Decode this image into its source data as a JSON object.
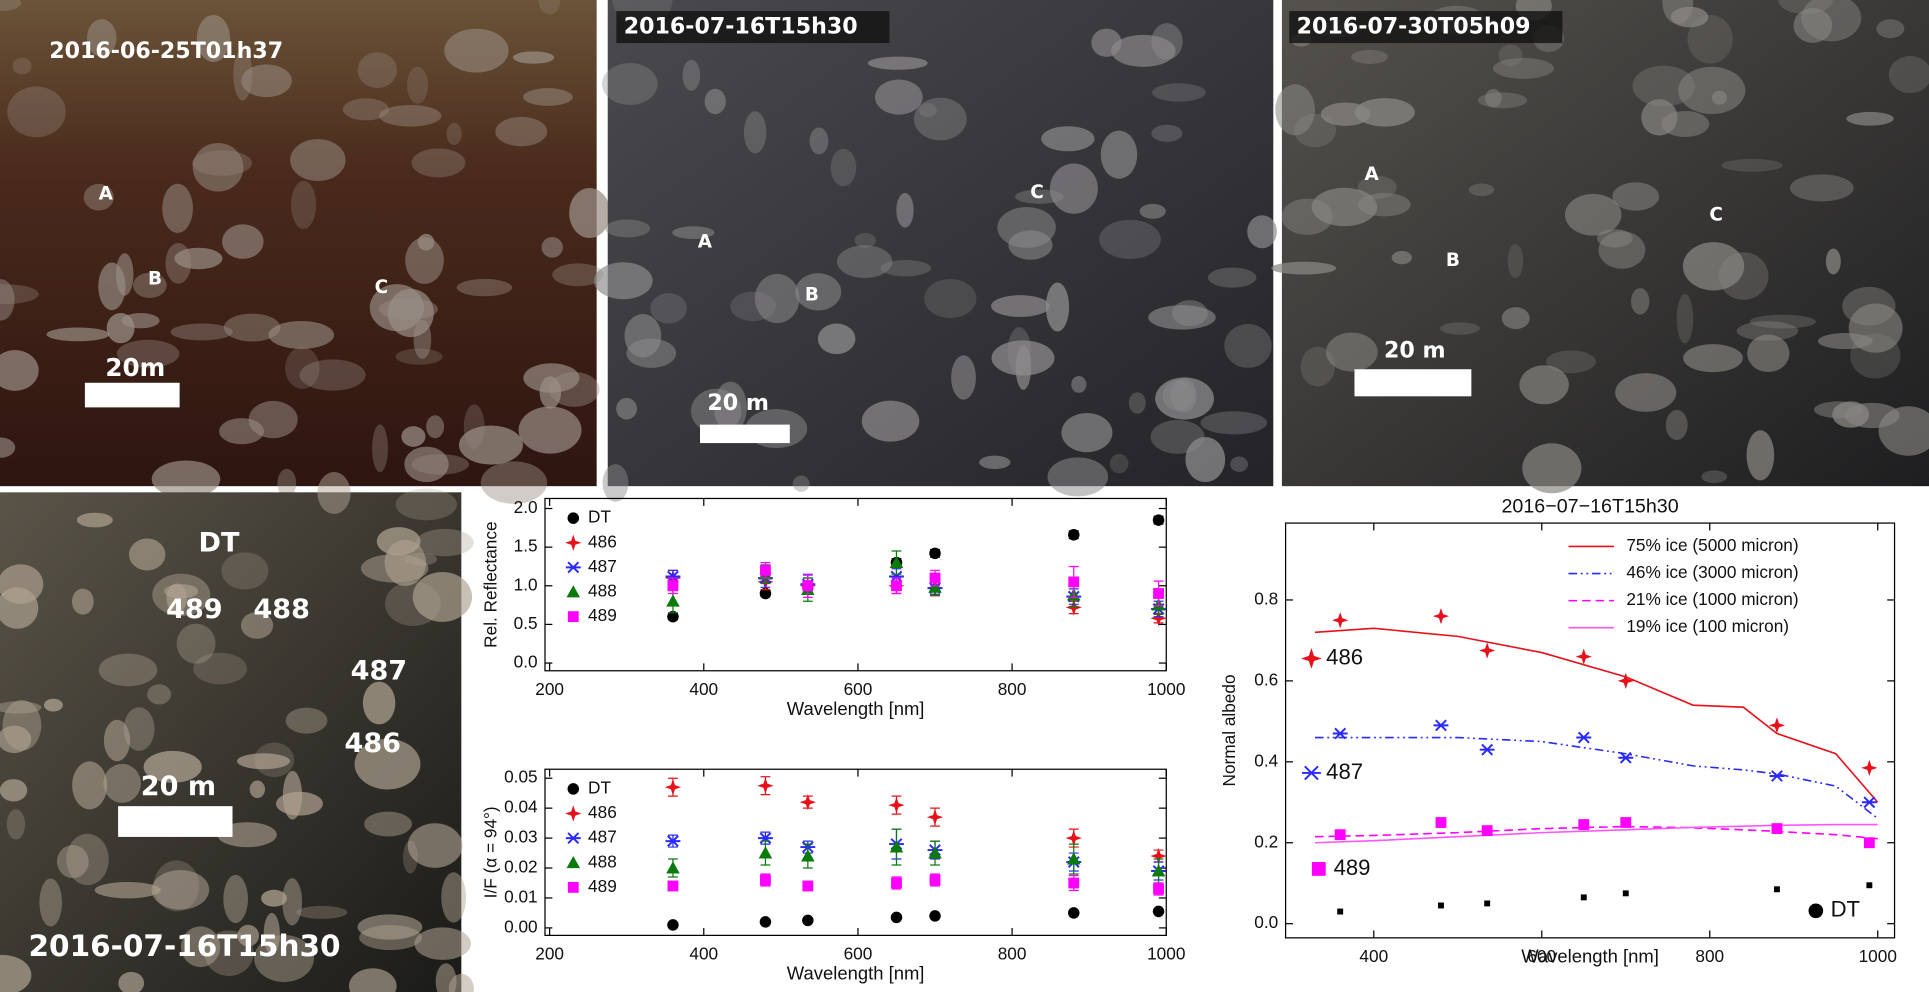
{
  "images": [
    {
      "timestamp": "2016-06-25T01h37",
      "labels": [
        "A",
        "B",
        "C"
      ],
      "scale": "20m"
    },
    {
      "timestamp": "2016-07-16T15h30",
      "labels": [
        "A",
        "B",
        "C"
      ],
      "scale": "20 m"
    },
    {
      "timestamp": "2016-07-30T05h09",
      "labels": [
        "A",
        "B",
        "C"
      ],
      "scale": "20 m"
    },
    {
      "timestamp": "2016-07-16T15h30",
      "labels": [
        "DT",
        "489",
        "488",
        "487",
        "486"
      ],
      "scale": "20 m"
    }
  ],
  "chart_data": [
    {
      "type": "scatter",
      "x_label": "Wavelength [nm]",
      "y_label": "Rel. Reflectance",
      "legend": "upper left",
      "x": [
        360,
        480,
        535,
        650,
        700,
        880,
        990
      ],
      "xlim": [
        194,
        1000
      ],
      "xticks": [
        200,
        400,
        600,
        800,
        1000
      ],
      "ylim": [
        -0.1,
        2.13
      ],
      "yticks": [
        {
          "value": 0,
          "label": "0.0"
        },
        {
          "value": 0.5,
          "label": "0.5"
        },
        {
          "value": 1,
          "label": "1.0"
        },
        {
          "value": 1.5,
          "label": "1.5"
        },
        {
          "value": 2,
          "label": "2.0"
        }
      ],
      "series": [
        {
          "name": "DT",
          "color": "#000000",
          "marker": "circle",
          "values": [
            0.6,
            0.9,
            1.0,
            1.3,
            1.42,
            1.66,
            1.85
          ],
          "errors": [
            0.04,
            0.04,
            0.04,
            0.05,
            0.05,
            0.05,
            0.05
          ]
        },
        {
          "name": "486",
          "color": "#e8101a",
          "marker": "star",
          "values": [
            1.1,
            1.05,
            1.0,
            1.0,
            0.97,
            0.72,
            0.58
          ],
          "errors": [
            0.1,
            0.1,
            0.1,
            0.1,
            0.1,
            0.08,
            0.06
          ]
        },
        {
          "name": "487",
          "color": "#2a2aff",
          "marker": "asterisk",
          "values": [
            1.12,
            1.1,
            1.02,
            1.12,
            0.97,
            0.86,
            0.7
          ],
          "errors": [
            0.08,
            0.12,
            0.12,
            0.1,
            0.08,
            0.1,
            0.1
          ]
        },
        {
          "name": "488",
          "color": "#0a7a0a",
          "marker": "triangle",
          "values": [
            0.8,
            1.15,
            0.95,
            1.3,
            0.98,
            0.88,
            0.75
          ],
          "errors": [
            0.15,
            0.12,
            0.15,
            0.15,
            0.1,
            0.15,
            0.12
          ]
        },
        {
          "name": "489",
          "color": "#ff00ff",
          "marker": "square",
          "values": [
            1.0,
            1.2,
            1.0,
            1.0,
            1.1,
            1.05,
            0.9
          ],
          "errors": [
            0.1,
            0.1,
            0.15,
            0.1,
            0.1,
            0.2,
            0.16
          ]
        }
      ]
    },
    {
      "type": "scatter",
      "x_label": "Wavelength [nm]",
      "y_label": "I/F (α = 94°)",
      "legend": "upper left",
      "x": [
        360,
        480,
        535,
        650,
        700,
        880,
        990
      ],
      "xlim": [
        194,
        1000
      ],
      "xticks": [
        200,
        400,
        600,
        800,
        1000
      ],
      "ylim": [
        -0.0025,
        0.053
      ],
      "yticks": [
        {
          "value": 0,
          "label": "0.00"
        },
        {
          "value": 0.01,
          "label": "0.01"
        },
        {
          "value": 0.02,
          "label": "0.02"
        },
        {
          "value": 0.03,
          "label": "0.03"
        },
        {
          "value": 0.04,
          "label": "0.04"
        },
        {
          "value": 0.05,
          "label": "0.05"
        }
      ],
      "series": [
        {
          "name": "DT",
          "color": "#000000",
          "marker": "circle",
          "values": [
            0.001,
            0.002,
            0.0025,
            0.0035,
            0.004,
            0.005,
            0.0055
          ],
          "errors": [
            0.0003,
            0.0003,
            0.0003,
            0.0003,
            0.0003,
            0.0003,
            0.0003
          ]
        },
        {
          "name": "486",
          "color": "#e8101a",
          "marker": "star",
          "values": [
            0.047,
            0.0475,
            0.042,
            0.041,
            0.037,
            0.03,
            0.024
          ],
          "errors": [
            0.003,
            0.003,
            0.002,
            0.003,
            0.003,
            0.003,
            0.002
          ]
        },
        {
          "name": "487",
          "color": "#2a2aff",
          "marker": "asterisk",
          "values": [
            0.029,
            0.03,
            0.027,
            0.028,
            0.026,
            0.022,
            0.019
          ],
          "errors": [
            0.002,
            0.002,
            0.002,
            0.005,
            0.003,
            0.003,
            0.003
          ]
        },
        {
          "name": "488",
          "color": "#0a7a0a",
          "marker": "triangle",
          "values": [
            0.02,
            0.025,
            0.024,
            0.027,
            0.025,
            0.023,
            0.019
          ],
          "errors": [
            0.003,
            0.004,
            0.004,
            0.006,
            0.004,
            0.005,
            0.004
          ]
        },
        {
          "name": "489",
          "color": "#ff00ff",
          "marker": "square",
          "values": [
            0.014,
            0.016,
            0.014,
            0.015,
            0.016,
            0.015,
            0.013
          ],
          "errors": [
            0.0015,
            0.002,
            0.0015,
            0.002,
            0.002,
            0.0025,
            0.002
          ]
        }
      ]
    },
    {
      "type": "line",
      "title": "2016−07−16T15h30",
      "x_label": "Wavelength [nm]",
      "y_label": "Normal albedo",
      "legend": "upper right",
      "x": [
        360,
        480,
        535,
        650,
        700,
        880,
        990
      ],
      "xlim": [
        295,
        1020
      ],
      "xticks": [
        400,
        600,
        800,
        1000
      ],
      "ylim": [
        -0.035,
        0.99
      ],
      "yticks": [
        {
          "value": 0,
          "label": "0.0"
        },
        {
          "value": 0.2,
          "label": "0.2"
        },
        {
          "value": 0.4,
          "label": "0.4"
        },
        {
          "value": 0.6,
          "label": "0.6"
        },
        {
          "value": 0.8,
          "label": "0.8"
        }
      ],
      "series": [
        {
          "name": "75% ice (5000 micron)",
          "color": "#e8101a",
          "dash": "solid",
          "x": [
            330,
            400,
            500,
            600,
            700,
            780,
            840,
            880,
            950,
            1000
          ],
          "values": [
            0.72,
            0.73,
            0.71,
            0.67,
            0.61,
            0.54,
            0.535,
            0.47,
            0.42,
            0.3
          ]
        },
        {
          "name": "46% ice (3000 micron)",
          "color": "#2a2aff",
          "dash": "dashdotdot",
          "x": [
            330,
            400,
            500,
            600,
            700,
            780,
            840,
            880,
            950,
            1000
          ],
          "values": [
            0.46,
            0.46,
            0.46,
            0.45,
            0.42,
            0.39,
            0.38,
            0.37,
            0.34,
            0.26
          ]
        },
        {
          "name": "21% ice (1000 micron)",
          "color": "#ff00ff",
          "dash": "dashed",
          "x": [
            330,
            400,
            500,
            600,
            700,
            780,
            840,
            880,
            950,
            1000
          ],
          "values": [
            0.215,
            0.218,
            0.225,
            0.235,
            0.24,
            0.237,
            0.232,
            0.228,
            0.22,
            0.21
          ]
        },
        {
          "name": "19% ice (100 micron)",
          "color": "#ff55ff",
          "dash": "solid",
          "x": [
            330,
            400,
            500,
            600,
            700,
            780,
            840,
            880,
            950,
            1000
          ],
          "values": [
            0.2,
            0.205,
            0.215,
            0.225,
            0.232,
            0.238,
            0.241,
            0.243,
            0.245,
            0.245
          ]
        },
        {
          "name": "486",
          "color": "#e8101a",
          "marker": "star",
          "values": [
            0.75,
            0.76,
            0.675,
            0.66,
            0.6,
            0.49,
            0.385
          ]
        },
        {
          "name": "487",
          "color": "#2a2aff",
          "marker": "asterisk",
          "values": [
            0.47,
            0.49,
            0.43,
            0.46,
            0.41,
            0.365,
            0.3
          ]
        },
        {
          "name": "489",
          "color": "#ff00ff",
          "marker": "square",
          "values": [
            0.22,
            0.25,
            0.23,
            0.245,
            0.25,
            0.235,
            0.2
          ]
        },
        {
          "name": "DT",
          "color": "#000000",
          "marker": "square",
          "values": [
            0.03,
            0.045,
            0.05,
            0.065,
            0.075,
            0.085,
            0.095
          ]
        }
      ]
    }
  ]
}
